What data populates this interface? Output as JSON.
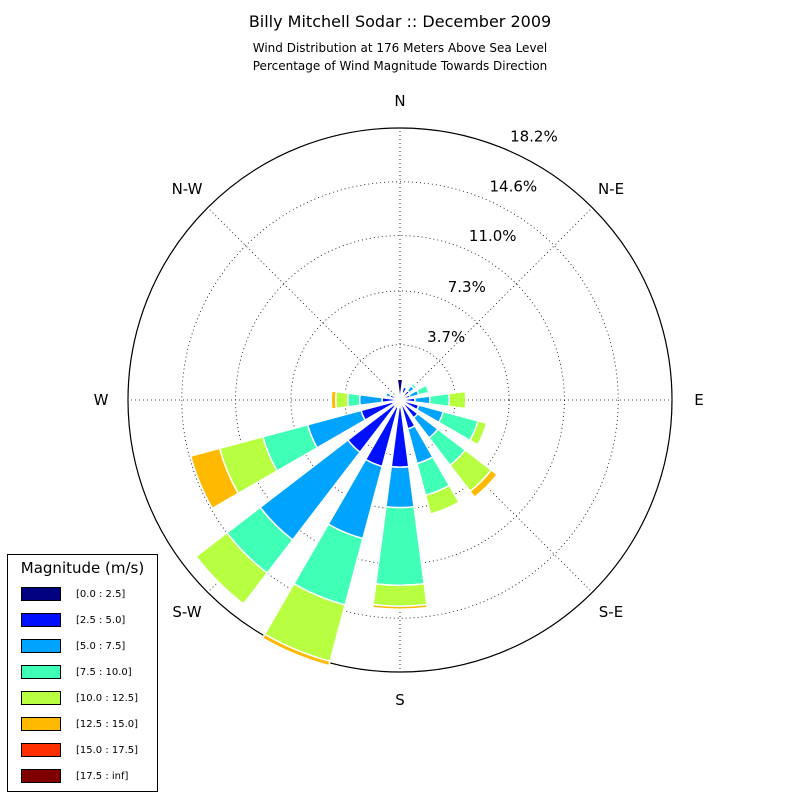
{
  "chart_data": {
    "type": "windrose",
    "title": "Billy Mitchell Sodar :: December 2009",
    "subtitle_lines": [
      "Wind Distribution at 176 Meters Above Sea Level",
      "Percentage of Wind Magnitude Towards Direction"
    ],
    "direction_labels": [
      "N",
      "N-E",
      "E",
      "S-E",
      "S",
      "S-W",
      "W",
      "N-W"
    ],
    "radial_ticks": [
      3.7,
      7.3,
      11.0,
      14.6,
      18.2
    ],
    "radial_tick_labels": [
      "3.7%",
      "7.3%",
      "11.0%",
      "14.6%",
      "18.2%"
    ],
    "rmax": 18.2,
    "grid": true,
    "legend_title": "Magnitude (m/s)",
    "bins": [
      {
        "label": "[0.0 : 2.5]",
        "color": "#000080"
      },
      {
        "label": "[2.5 : 5.0]",
        "color": "#0010ff"
      },
      {
        "label": "[5.0 : 7.5]",
        "color": "#00a4ff"
      },
      {
        "label": "[7.5 : 10.0]",
        "color": "#40ffb7"
      },
      {
        "label": "[10.0 : 12.5]",
        "color": "#b7ff40"
      },
      {
        "label": "[12.5 : 15.0]",
        "color": "#ffb900"
      },
      {
        "label": "[15.0 : 17.5]",
        "color": "#ff3000"
      },
      {
        "label": "[17.5 : inf]",
        "color": "#800000"
      }
    ],
    "sector_width_deg": 15.0,
    "sectors": [
      {
        "dir": 0,
        "cum": [
          1.4,
          1.5,
          1.5,
          1.5,
          1.5,
          1.5,
          1.5,
          1.5
        ]
      },
      {
        "dir": 22.5,
        "cum": [
          0.5,
          0.9,
          1.0,
          1.1,
          1.1,
          1.1,
          1.1,
          1.1
        ]
      },
      {
        "dir": 45,
        "cum": [
          0.3,
          0.8,
          1.2,
          1.4,
          1.5,
          1.5,
          1.5,
          1.5
        ]
      },
      {
        "dir": 67.5,
        "cum": [
          0.3,
          0.7,
          1.3,
          2.0,
          2.1,
          2.1,
          2.1,
          2.1
        ]
      },
      {
        "dir": 90,
        "cum": [
          0.3,
          1.0,
          2.0,
          3.3,
          4.4,
          4.4,
          4.4,
          4.4
        ]
      },
      {
        "dir": 112.5,
        "cum": [
          0.3,
          1.3,
          3.0,
          5.4,
          6.0,
          6.0,
          6.0,
          6.0
        ]
      },
      {
        "dir": 135,
        "cum": [
          0.4,
          1.5,
          3.2,
          5.5,
          7.7,
          8.2,
          8.3,
          8.3
        ]
      },
      {
        "dir": 157.5,
        "cum": [
          0.4,
          2.0,
          4.4,
          6.6,
          7.9,
          7.9,
          8.0,
          8.0
        ]
      },
      {
        "dir": 180,
        "cum": [
          0.5,
          4.5,
          7.2,
          12.4,
          13.8,
          14.0,
          14.0,
          14.0
        ]
      },
      {
        "dir": 202.5,
        "cum": [
          0.5,
          4.6,
          9.6,
          14.2,
          18.1,
          18.4,
          18.4,
          18.4
        ]
      },
      {
        "dir": 225,
        "cum": [
          0.5,
          4.4,
          11.8,
          14.6,
          17.2,
          17.2,
          17.2,
          17.2
        ]
      },
      {
        "dir": 247.5,
        "cum": [
          0.5,
          2.7,
          6.4,
          9.5,
          12.5,
          14.5,
          14.5,
          14.5
        ]
      },
      {
        "dir": 270,
        "cum": [
          0.3,
          1.2,
          2.7,
          3.5,
          4.3,
          4.6,
          4.6,
          4.6
        ]
      },
      {
        "dir": 292.5,
        "cum": [
          0.3,
          0.7,
          1.0,
          1.1,
          1.1,
          1.1,
          1.1,
          1.1
        ]
      },
      {
        "dir": 315,
        "cum": [
          0.3,
          0.5,
          0.5,
          0.5,
          0.5,
          0.5,
          0.5,
          0.5
        ]
      },
      {
        "dir": 337.5,
        "cum": [
          0.2,
          0.3,
          0.3,
          0.3,
          0.3,
          0.3,
          0.3,
          0.3
        ]
      }
    ]
  }
}
